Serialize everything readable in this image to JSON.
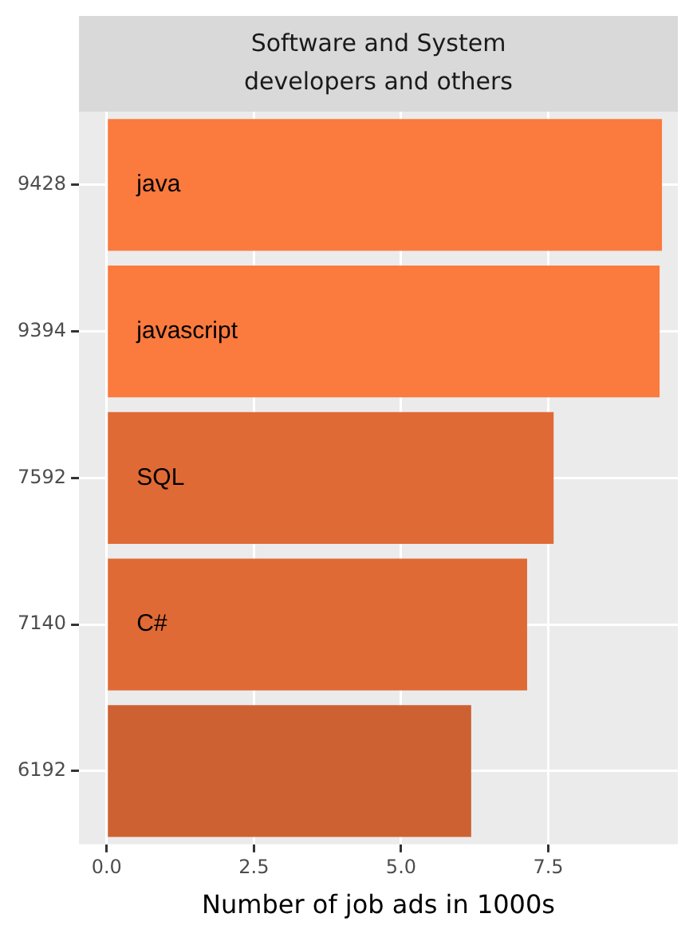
{
  "chart_data": {
    "type": "bar",
    "orientation": "horizontal",
    "title": "Software and System\ndevelopers and others",
    "xlabel": "Number of job ads in 1000s",
    "categories": [
      "9428",
      "9394",
      "7592",
      "7140",
      "6192"
    ],
    "values": [
      9.43,
      9.39,
      7.59,
      7.14,
      6.19
    ],
    "colors": [
      "#fb7a3e",
      "#fb7a3e",
      "#e06a35",
      "#e06a35",
      "#cd6132"
    ],
    "annotations": [
      {
        "text": "java",
        "y": "9428"
      },
      {
        "text": "javascript",
        "y": "9394"
      },
      {
        "text": "SQL",
        "y": "7592"
      },
      {
        "text": "C#",
        "y": "7140"
      }
    ],
    "xlim": [
      -0.47,
      9.7
    ],
    "xticks": [
      {
        "value": 0,
        "label": "0.0"
      },
      {
        "value": 2.5,
        "label": "2.5"
      },
      {
        "value": 5,
        "label": "5.0"
      },
      {
        "value": 7.5,
        "label": "7.5"
      }
    ],
    "grid": true,
    "legend": false
  }
}
